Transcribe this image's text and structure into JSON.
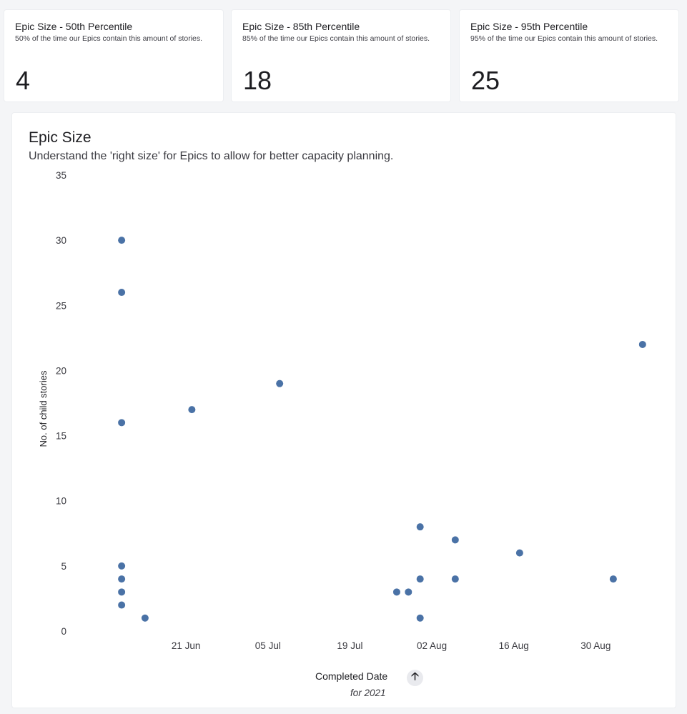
{
  "kpis": [
    {
      "title": "Epic Size - 50th Percentile",
      "subtitle": "50% of the time our Epics contain this amount of stories.",
      "value": "4"
    },
    {
      "title": "Epic Size - 85th Percentile",
      "subtitle": "85% of the time our Epics contain this amount of stories.",
      "value": "18"
    },
    {
      "title": "Epic Size - 95th Percentile",
      "subtitle": "95% of the time our Epics contain this amount of stories.",
      "value": "25"
    }
  ],
  "chart": {
    "title": "Epic Size",
    "subtitle": "Understand the 'right size' for Epics to allow for better capacity planning.",
    "xlabel": "Completed Date",
    "xsublabel": "for 2021",
    "sort_icon": "arrow-up-icon",
    "sort_glyph": "🡡"
  },
  "chart_data": {
    "type": "scatter",
    "xlabel": "Completed Date",
    "ylabel": "No. of child stories",
    "ylim": [
      0,
      35
    ],
    "xlim": [
      "2021-06-04",
      "2021-09-08"
    ],
    "yticks": [
      0,
      5,
      10,
      15,
      20,
      25,
      30,
      35
    ],
    "xticks": [
      {
        "date": "2021-06-21",
        "label": "21 Jun"
      },
      {
        "date": "2021-07-05",
        "label": "05 Jul"
      },
      {
        "date": "2021-07-19",
        "label": "19 Jul"
      },
      {
        "date": "2021-08-02",
        "label": "02 Aug"
      },
      {
        "date": "2021-08-16",
        "label": "16 Aug"
      },
      {
        "date": "2021-08-30",
        "label": "30 Aug"
      }
    ],
    "grid": false,
    "point_color": "#4a72a6",
    "points": [
      {
        "x": "2021-06-10",
        "y": 30
      },
      {
        "x": "2021-06-10",
        "y": 26
      },
      {
        "x": "2021-06-10",
        "y": 16
      },
      {
        "x": "2021-06-10",
        "y": 5
      },
      {
        "x": "2021-06-10",
        "y": 4
      },
      {
        "x": "2021-06-10",
        "y": 3
      },
      {
        "x": "2021-06-10",
        "y": 2
      },
      {
        "x": "2021-06-14",
        "y": 1
      },
      {
        "x": "2021-06-22",
        "y": 17
      },
      {
        "x": "2021-07-07",
        "y": 19
      },
      {
        "x": "2021-07-27",
        "y": 3
      },
      {
        "x": "2021-07-29",
        "y": 3
      },
      {
        "x": "2021-07-31",
        "y": 8
      },
      {
        "x": "2021-07-31",
        "y": 4
      },
      {
        "x": "2021-07-31",
        "y": 1
      },
      {
        "x": "2021-08-06",
        "y": 7
      },
      {
        "x": "2021-08-06",
        "y": 4
      },
      {
        "x": "2021-08-17",
        "y": 6
      },
      {
        "x": "2021-09-02",
        "y": 4
      },
      {
        "x": "2021-09-07",
        "y": 22
      }
    ]
  }
}
